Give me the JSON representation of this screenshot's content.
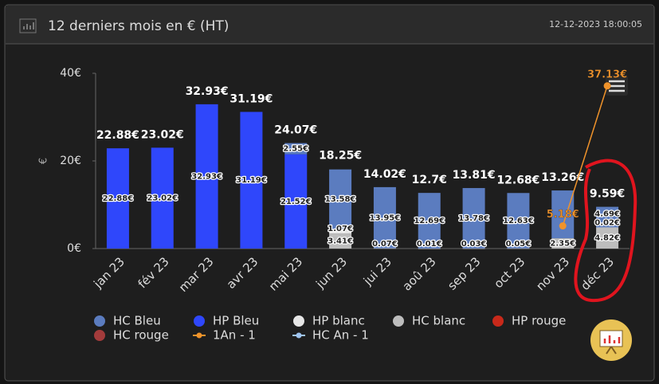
{
  "header": {
    "title": "12 derniers mois en € (HT)",
    "timestamp": "12-12-2023 18:00:05"
  },
  "chart_data": {
    "type": "bar",
    "stacked": true,
    "ylabel": "€",
    "categories": [
      "jan 23",
      "fév 23",
      "mar 23",
      "avr 23",
      "mai 23",
      "jun 23",
      "jui 23",
      "aoû 23",
      "sep 23",
      "oct 23",
      "nov 23",
      "déc 23"
    ],
    "ylim": [
      0,
      40
    ],
    "yticks": [
      {
        "value": 0,
        "label": "0€"
      },
      {
        "value": 20,
        "label": "20€"
      },
      {
        "value": 40,
        "label": "40€"
      }
    ],
    "totals": [
      22.88,
      23.02,
      32.93,
      31.19,
      24.07,
      18.25,
      14.02,
      12.7,
      13.81,
      12.68,
      13.26,
      9.59
    ],
    "total_labels": [
      "22.88€",
      "23.02€",
      "32.93€",
      "31.19€",
      "24.07€",
      "18.25€",
      "14.02€",
      "12.7€",
      "13.81€",
      "12.68€",
      "13.26€",
      "9.59€"
    ],
    "series": [
      {
        "name": "HC Bleu",
        "color": "#5b7cbf",
        "stack": true,
        "values": [
          null,
          null,
          null,
          null,
          2.55,
          13.58,
          13.95,
          12.69,
          13.78,
          12.63,
          10.91,
          4.69
        ],
        "value_labels": [
          null,
          null,
          null,
          null,
          "2.55€",
          "13.58€",
          "13.95€",
          "12.69€",
          "13.78€",
          "12.63€",
          null,
          "4.69€"
        ]
      },
      {
        "name": "HP Bleu",
        "color": "#2f47fb",
        "stack": true,
        "values": [
          22.88,
          23.02,
          32.93,
          31.19,
          21.52,
          null,
          null,
          null,
          null,
          null,
          null,
          null
        ],
        "value_labels": [
          "22.88€",
          "23.02€",
          "32.93€",
          "31.19€",
          "21.52€",
          null,
          null,
          null,
          null,
          null,
          null,
          null
        ]
      },
      {
        "name": "HP blanc",
        "color": "#e6e6e6",
        "stack": true,
        "values": [
          null,
          null,
          null,
          null,
          null,
          1.07,
          0.07,
          0.01,
          0.03,
          0.05,
          null,
          0.02
        ],
        "value_labels": [
          null,
          null,
          null,
          null,
          null,
          "1.07€",
          "0.07€",
          "0.01€",
          "0.03€",
          "0.05€",
          null,
          "0.02€"
        ]
      },
      {
        "name": "HC blanc",
        "color": "#bdbdbd",
        "stack": true,
        "values": [
          null,
          null,
          null,
          null,
          null,
          3.41,
          null,
          null,
          null,
          null,
          2.35,
          4.82
        ],
        "value_labels": [
          null,
          null,
          null,
          null,
          null,
          "3.41€",
          null,
          null,
          null,
          null,
          "2.35€",
          "4.82€"
        ]
      },
      {
        "name": "HP rouge",
        "color": "#c8291a",
        "stack": true,
        "values": [
          null,
          null,
          null,
          null,
          null,
          null,
          null,
          null,
          null,
          null,
          null,
          null
        ]
      },
      {
        "name": "HC rouge",
        "color": "#a33b3b",
        "stack": true,
        "values": [
          null,
          null,
          null,
          null,
          null,
          null,
          null,
          null,
          null,
          null,
          null,
          null
        ]
      },
      {
        "name": "1An - 1",
        "color": "#f0932b",
        "line": true,
        "values": [
          null,
          null,
          null,
          null,
          null,
          null,
          null,
          null,
          null,
          null,
          5.18,
          37.13
        ],
        "value_labels": [
          null,
          null,
          null,
          null,
          null,
          null,
          null,
          null,
          null,
          null,
          "5.18€",
          "37.13€"
        ]
      },
      {
        "name": "HC An - 1",
        "color": "#9fc4f0",
        "line": true,
        "values": [
          null,
          null,
          null,
          null,
          null,
          null,
          null,
          null,
          null,
          null,
          null,
          null
        ]
      }
    ]
  }
}
